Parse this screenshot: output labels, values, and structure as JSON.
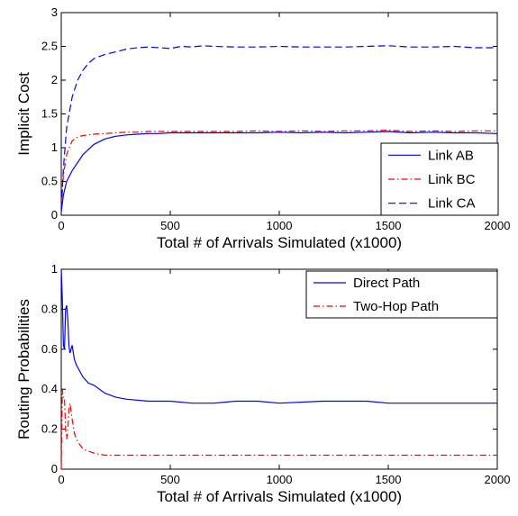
{
  "chart_data": [
    {
      "type": "line",
      "xlabel": "Total # of Arrivals Simulated (x1000)",
      "ylabel": "Implicit Cost",
      "xlim": [
        0,
        2000
      ],
      "ylim": [
        0,
        3
      ],
      "xticks": [
        "0",
        "500",
        "1000",
        "1500",
        "2000"
      ],
      "yticks": [
        "0",
        "0.5",
        "1",
        "1.5",
        "2",
        "2.5",
        "3"
      ],
      "grid": false,
      "legend_position": "bottom-right",
      "series": [
        {
          "name": "Link AB",
          "color": "#0000ff",
          "style": "solid",
          "x": [
            0,
            10,
            25,
            50,
            75,
            100,
            150,
            200,
            250,
            300,
            350,
            400,
            450,
            500,
            600,
            700,
            800,
            900,
            1000,
            1100,
            1200,
            1300,
            1400,
            1500,
            1600,
            1700,
            1800,
            1900,
            2000
          ],
          "y": [
            0.05,
            0.3,
            0.5,
            0.66,
            0.78,
            0.9,
            1.05,
            1.13,
            1.17,
            1.19,
            1.2,
            1.21,
            1.21,
            1.22,
            1.22,
            1.22,
            1.22,
            1.22,
            1.23,
            1.22,
            1.23,
            1.22,
            1.23,
            1.24,
            1.22,
            1.23,
            1.22,
            1.22,
            1.21
          ]
        },
        {
          "name": "Link BC",
          "color": "#ff0000",
          "style": "dashdot",
          "x": [
            0,
            10,
            25,
            50,
            75,
            100,
            150,
            200,
            250,
            300,
            350,
            400,
            450,
            500,
            600,
            700,
            800,
            900,
            1000,
            1100,
            1200,
            1300,
            1400,
            1500,
            1600,
            1700,
            1800,
            1900,
            2000
          ],
          "y": [
            0.1,
            0.6,
            0.9,
            1.1,
            1.16,
            1.18,
            1.2,
            1.21,
            1.22,
            1.23,
            1.23,
            1.24,
            1.24,
            1.24,
            1.24,
            1.24,
            1.24,
            1.25,
            1.24,
            1.25,
            1.24,
            1.25,
            1.25,
            1.26,
            1.24,
            1.25,
            1.24,
            1.25,
            1.25
          ]
        },
        {
          "name": "Link CA",
          "color": "#0000ff",
          "style": "dashed",
          "x": [
            0,
            10,
            25,
            50,
            75,
            100,
            125,
            150,
            200,
            250,
            300,
            350,
            400,
            450,
            500,
            550,
            600,
            650,
            700,
            800,
            900,
            1000,
            1100,
            1200,
            1300,
            1400,
            1500,
            1600,
            1700,
            1800,
            1900,
            2000
          ],
          "y": [
            0.1,
            0.7,
            1.3,
            1.75,
            2.0,
            2.15,
            2.25,
            2.32,
            2.38,
            2.42,
            2.46,
            2.48,
            2.49,
            2.48,
            2.47,
            2.5,
            2.49,
            2.51,
            2.5,
            2.49,
            2.49,
            2.5,
            2.49,
            2.49,
            2.49,
            2.5,
            2.51,
            2.49,
            2.49,
            2.5,
            2.48,
            2.48
          ]
        }
      ]
    },
    {
      "type": "line",
      "xlabel": "Total # of Arrivals Simulated (x1000)",
      "ylabel": "Routing Probabilities",
      "xlim": [
        0,
        2000
      ],
      "ylim": [
        0,
        1
      ],
      "xticks": [
        "0",
        "500",
        "1000",
        "1500",
        "2000"
      ],
      "yticks": [
        "0",
        "0.2",
        "0.4",
        "0.6",
        "0.8",
        "1"
      ],
      "grid": false,
      "legend_position": "top-right",
      "series": [
        {
          "name": "Direct Path",
          "color": "#0000ff",
          "style": "solid",
          "x": [
            0,
            5,
            10,
            15,
            20,
            25,
            30,
            35,
            40,
            50,
            60,
            70,
            80,
            100,
            125,
            150,
            200,
            250,
            300,
            400,
            500,
            600,
            700,
            800,
            900,
            1000,
            1200,
            1400,
            1500,
            1600,
            1800,
            2000
          ],
          "y": [
            1.0,
            0.85,
            0.62,
            0.6,
            0.8,
            0.82,
            0.75,
            0.62,
            0.58,
            0.62,
            0.55,
            0.52,
            0.5,
            0.46,
            0.43,
            0.42,
            0.38,
            0.36,
            0.35,
            0.34,
            0.34,
            0.33,
            0.33,
            0.34,
            0.34,
            0.33,
            0.34,
            0.34,
            0.33,
            0.33,
            0.33,
            0.33
          ]
        },
        {
          "name": "Two-Hop Path",
          "color": "#ff0000",
          "style": "dashdot",
          "x": [
            0,
            5,
            10,
            15,
            20,
            25,
            30,
            35,
            40,
            50,
            60,
            70,
            80,
            100,
            125,
            150,
            200,
            250,
            300,
            400,
            500,
            600,
            700,
            800,
            900,
            1000,
            1200,
            1400,
            1500,
            1600,
            1800,
            2000
          ],
          "y": [
            0.0,
            0.4,
            0.35,
            0.35,
            0.2,
            0.15,
            0.2,
            0.3,
            0.33,
            0.25,
            0.18,
            0.15,
            0.13,
            0.1,
            0.09,
            0.08,
            0.07,
            0.07,
            0.07,
            0.07,
            0.07,
            0.07,
            0.07,
            0.07,
            0.07,
            0.07,
            0.07,
            0.07,
            0.07,
            0.07,
            0.07,
            0.07
          ]
        }
      ]
    }
  ]
}
